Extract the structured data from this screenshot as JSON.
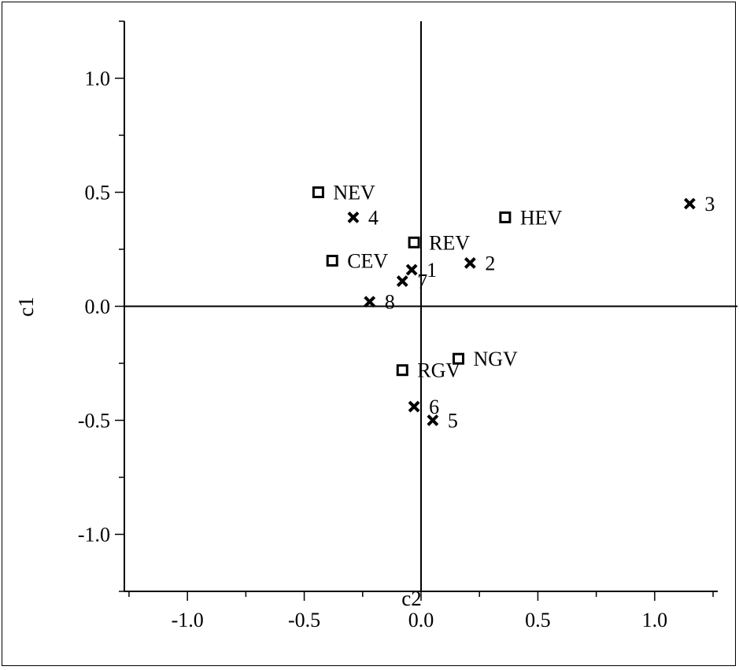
{
  "chart_data": {
    "type": "scatter",
    "xlabel": "c2",
    "ylabel": "c1",
    "xlim": [
      -1.27,
      1.27
    ],
    "ylim": [
      -1.25,
      1.25
    ],
    "x_ticks": [
      -1.0,
      -0.5,
      0.0,
      0.5,
      1.0
    ],
    "x_tick_labels": [
      "-1.0",
      "-0.5",
      "0.0",
      "0.5",
      "1.0"
    ],
    "y_ticks": [
      1.0,
      0.5,
      0.0,
      -0.5,
      -1.0
    ],
    "y_tick_labels": [
      "1.0",
      "0.5",
      "0.0",
      "-0.5",
      "-1.0"
    ],
    "grid": false,
    "reference_lines": {
      "x": 0.0,
      "y": 0.0
    },
    "series": [
      {
        "marker": "square",
        "points": [
          {
            "label": "NEV",
            "x": -0.44,
            "y": 0.5
          },
          {
            "label": "HEV",
            "x": 0.36,
            "y": 0.39
          },
          {
            "label": "REV",
            "x": -0.03,
            "y": 0.28
          },
          {
            "label": "CEV",
            "x": -0.38,
            "y": 0.2
          },
          {
            "label": "NGV",
            "x": 0.16,
            "y": -0.23
          },
          {
            "label": "RGV",
            "x": -0.08,
            "y": -0.28
          }
        ]
      },
      {
        "marker": "x",
        "points": [
          {
            "label": "3",
            "x": 1.15,
            "y": 0.45
          },
          {
            "label": "4",
            "x": -0.29,
            "y": 0.39
          },
          {
            "label": "2",
            "x": 0.21,
            "y": 0.19
          },
          {
            "label": "1",
            "x": -0.04,
            "y": 0.16
          },
          {
            "label": "7",
            "x": -0.08,
            "y": 0.11
          },
          {
            "label": "8",
            "x": -0.22,
            "y": 0.02
          },
          {
            "label": "6",
            "x": -0.03,
            "y": -0.44
          },
          {
            "label": "5",
            "x": 0.05,
            "y": -0.5
          }
        ]
      }
    ]
  }
}
